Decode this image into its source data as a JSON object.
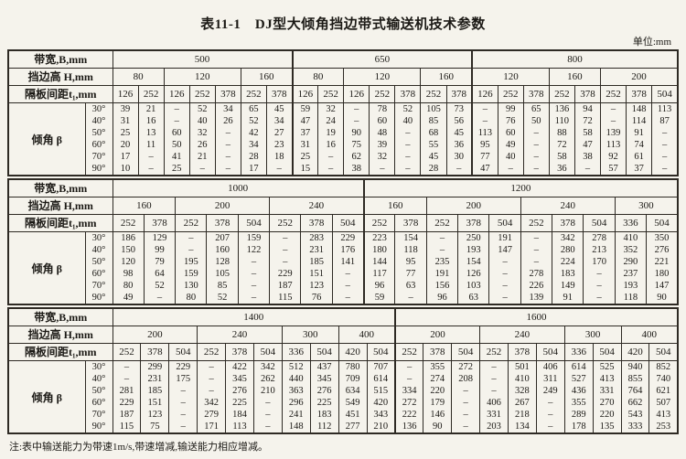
{
  "title": "表11-1　DJ型大倾角挡边带式输送机技术参数",
  "unit_label": "单位:mm",
  "footnote": "注:表中输送能力为带速1m/s,带速增减,输送能力相应增减。",
  "row_labels": {
    "bandwidth": "带宽,B,mm",
    "edge_height": "挡边高 H,mm",
    "spacing": "隔板间距t₁,mm",
    "inclination": "倾角 β"
  },
  "angles": [
    "30°",
    "40°",
    "50°",
    "60°",
    "70°",
    "90°"
  ],
  "sections": [
    {
      "bandwidths": [
        {
          "label": "500",
          "span": 7
        },
        {
          "label": "650",
          "span": 7
        },
        {
          "label": "800",
          "span": 8
        }
      ],
      "heights": [
        {
          "label": "80",
          "span": 2
        },
        {
          "label": "120",
          "span": 3
        },
        {
          "label": "160",
          "span": 2
        },
        {
          "label": "80",
          "span": 2
        },
        {
          "label": "120",
          "span": 3
        },
        {
          "label": "160",
          "span": 2
        },
        {
          "label": "120",
          "span": 3
        },
        {
          "label": "160",
          "span": 2
        },
        {
          "label": "200",
          "span": 3
        }
      ],
      "spacings": [
        "126",
        "252",
        "126",
        "252",
        "378",
        "252",
        "378",
        "126",
        "252",
        "126",
        "252",
        "378",
        "252",
        "378",
        "126",
        "252",
        "378",
        "252",
        "378",
        "252",
        "378",
        "504"
      ],
      "rows": [
        [
          "39",
          "21",
          "–",
          "52",
          "34",
          "65",
          "45",
          "59",
          "32",
          "–",
          "78",
          "52",
          "105",
          "73",
          "–",
          "99",
          "65",
          "136",
          "94",
          "–",
          "148",
          "113"
        ],
        [
          "31",
          "16",
          "–",
          "40",
          "26",
          "52",
          "34",
          "47",
          "24",
          "–",
          "60",
          "40",
          "85",
          "56",
          "–",
          "76",
          "50",
          "110",
          "72",
          "–",
          "114",
          "87"
        ],
        [
          "25",
          "13",
          "60",
          "32",
          "–",
          "42",
          "27",
          "37",
          "19",
          "90",
          "48",
          "–",
          "68",
          "45",
          "113",
          "60",
          "–",
          "88",
          "58",
          "139",
          "91",
          "–"
        ],
        [
          "20",
          "11",
          "50",
          "26",
          "–",
          "34",
          "23",
          "31",
          "16",
          "75",
          "39",
          "–",
          "55",
          "36",
          "95",
          "49",
          "–",
          "72",
          "47",
          "113",
          "74",
          "–"
        ],
        [
          "17",
          "–",
          "41",
          "21",
          "–",
          "28",
          "18",
          "25",
          "–",
          "62",
          "32",
          "–",
          "45",
          "30",
          "77",
          "40",
          "–",
          "58",
          "38",
          "92",
          "61",
          "–"
        ],
        [
          "10",
          "–",
          "25",
          "–",
          "–",
          "17",
          "–",
          "15",
          "–",
          "38",
          "–",
          "–",
          "28",
          "–",
          "47",
          "–",
          "–",
          "36",
          "–",
          "57",
          "37",
          "–"
        ]
      ]
    },
    {
      "bandwidths": [
        {
          "label": "1000",
          "span": 8
        },
        {
          "label": "1200",
          "span": 10
        }
      ],
      "heights": [
        {
          "label": "160",
          "span": 2
        },
        {
          "label": "200",
          "span": 3
        },
        {
          "label": "240",
          "span": 3
        },
        {
          "label": "160",
          "span": 2
        },
        {
          "label": "200",
          "span": 3
        },
        {
          "label": "240",
          "span": 3
        },
        {
          "label": "300",
          "span": 2
        }
      ],
      "spacings": [
        "252",
        "378",
        "252",
        "378",
        "504",
        "252",
        "378",
        "504",
        "252",
        "378",
        "252",
        "378",
        "504",
        "252",
        "378",
        "504",
        "336",
        "504"
      ],
      "rows": [
        [
          "186",
          "129",
          "–",
          "207",
          "159",
          "–",
          "283",
          "229",
          "223",
          "154",
          "–",
          "250",
          "191",
          "–",
          "342",
          "278",
          "410",
          "350"
        ],
        [
          "150",
          "99",
          "–",
          "160",
          "122",
          "–",
          "231",
          "176",
          "180",
          "118",
          "–",
          "193",
          "147",
          "–",
          "280",
          "213",
          "352",
          "276"
        ],
        [
          "120",
          "79",
          "195",
          "128",
          "–",
          "–",
          "185",
          "141",
          "144",
          "95",
          "235",
          "154",
          "–",
          "–",
          "224",
          "170",
          "290",
          "221"
        ],
        [
          "98",
          "64",
          "159",
          "105",
          "–",
          "229",
          "151",
          "–",
          "117",
          "77",
          "191",
          "126",
          "–",
          "278",
          "183",
          "–",
          "237",
          "180"
        ],
        [
          "80",
          "52",
          "130",
          "85",
          "–",
          "187",
          "123",
          "–",
          "96",
          "63",
          "156",
          "103",
          "–",
          "226",
          "149",
          "–",
          "193",
          "147"
        ],
        [
          "49",
          "–",
          "80",
          "52",
          "–",
          "115",
          "76",
          "–",
          "59",
          "–",
          "96",
          "63",
          "–",
          "139",
          "91",
          "–",
          "118",
          "90"
        ]
      ]
    },
    {
      "bandwidths": [
        {
          "label": "1400",
          "span": 10
        },
        {
          "label": "1600",
          "span": 10
        }
      ],
      "heights": [
        {
          "label": "200",
          "span": 3
        },
        {
          "label": "240",
          "span": 3
        },
        {
          "label": "300",
          "span": 2
        },
        {
          "label": "400",
          "span": 2
        },
        {
          "label": "200",
          "span": 3
        },
        {
          "label": "240",
          "span": 3
        },
        {
          "label": "300",
          "span": 2
        },
        {
          "label": "400",
          "span": 2
        }
      ],
      "spacings": [
        "252",
        "378",
        "504",
        "252",
        "378",
        "504",
        "336",
        "504",
        "420",
        "504",
        "252",
        "378",
        "504",
        "252",
        "378",
        "504",
        "336",
        "504",
        "420",
        "504"
      ],
      "rows": [
        [
          "–",
          "299",
          "229",
          "–",
          "422",
          "342",
          "512",
          "437",
          "780",
          "707",
          "–",
          "355",
          "272",
          "–",
          "501",
          "406",
          "614",
          "525",
          "940",
          "852"
        ],
        [
          "–",
          "231",
          "175",
          "–",
          "345",
          "262",
          "440",
          "345",
          "709",
          "614",
          "–",
          "274",
          "208",
          "–",
          "410",
          "311",
          "527",
          "413",
          "855",
          "740"
        ],
        [
          "281",
          "185",
          "–",
          "–",
          "276",
          "210",
          "363",
          "276",
          "634",
          "515",
          "334",
          "220",
          "–",
          "–",
          "328",
          "249",
          "436",
          "331",
          "764",
          "621"
        ],
        [
          "229",
          "151",
          "–",
          "342",
          "225",
          "–",
          "296",
          "225",
          "549",
          "420",
          "272",
          "179",
          "–",
          "406",
          "267",
          "–",
          "355",
          "270",
          "662",
          "507"
        ],
        [
          "187",
          "123",
          "–",
          "279",
          "184",
          "–",
          "241",
          "183",
          "451",
          "343",
          "222",
          "146",
          "–",
          "331",
          "218",
          "–",
          "289",
          "220",
          "543",
          "413"
        ],
        [
          "115",
          "75",
          "–",
          "171",
          "113",
          "–",
          "148",
          "112",
          "277",
          "210",
          "136",
          "90",
          "–",
          "203",
          "134",
          "–",
          "178",
          "135",
          "333",
          "253"
        ]
      ]
    }
  ]
}
